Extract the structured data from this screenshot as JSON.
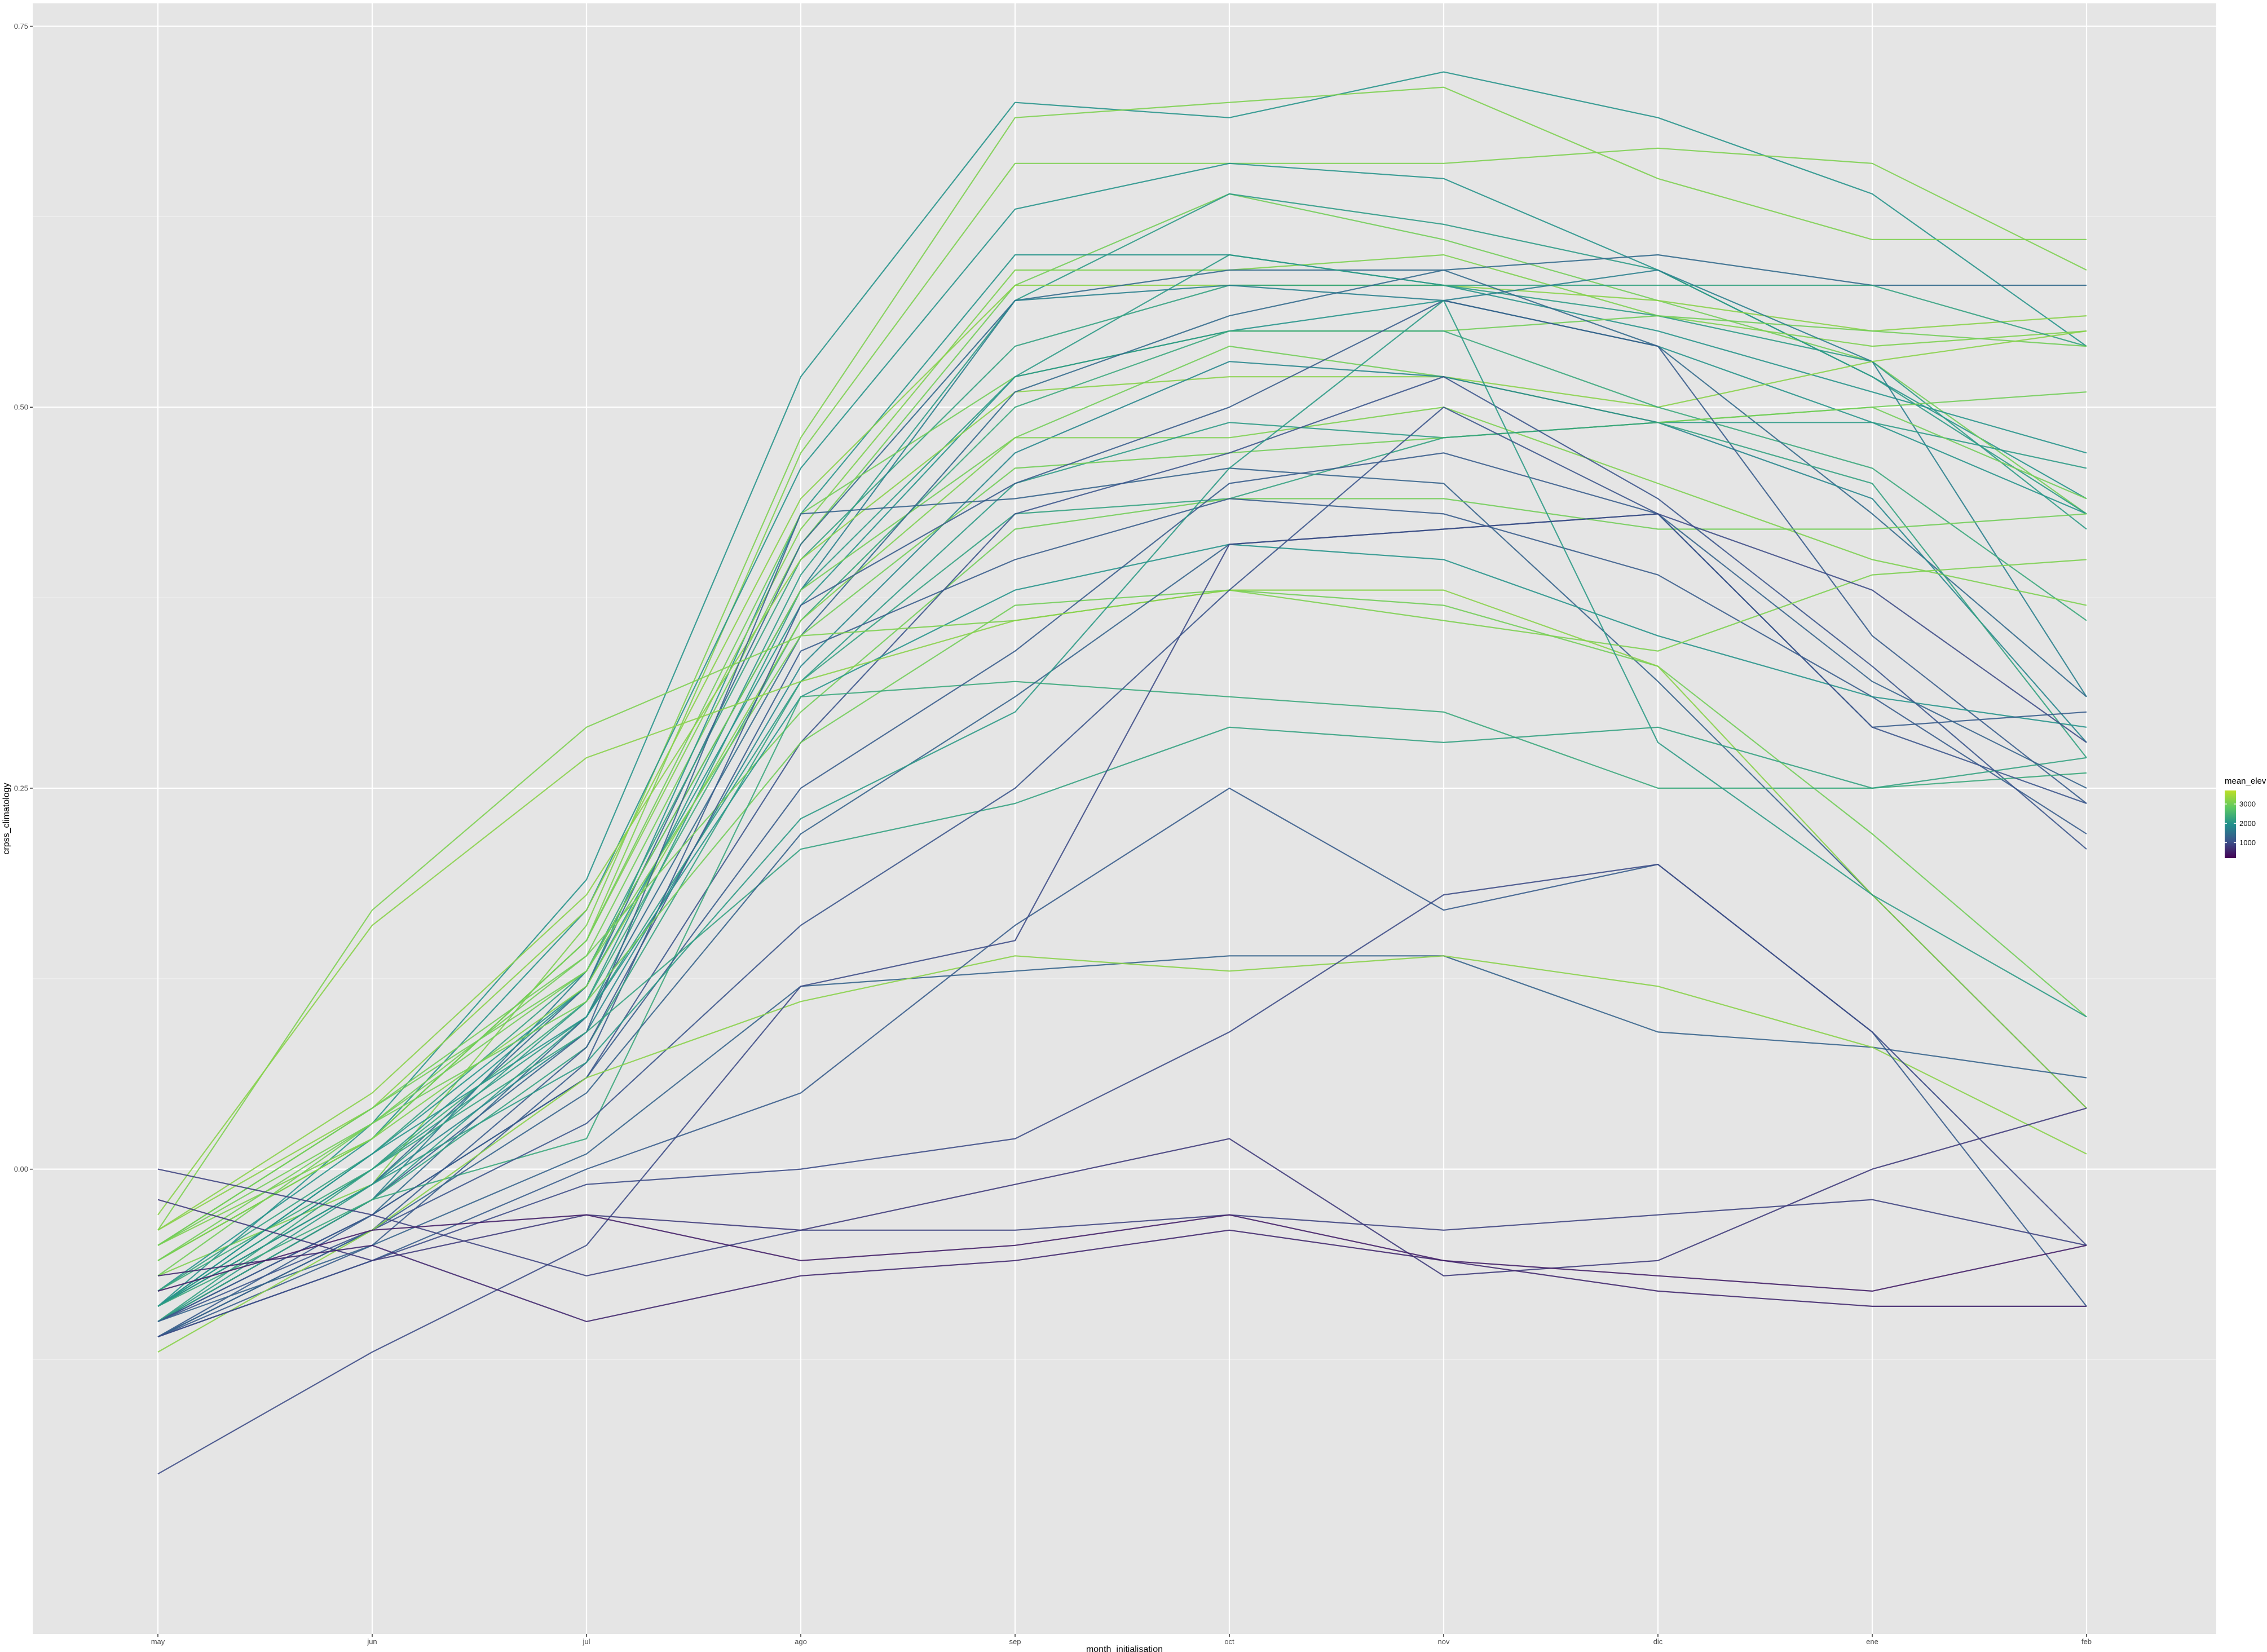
{
  "chart_data": {
    "type": "line",
    "title": "",
    "xlabel": "month_initialisation",
    "ylabel": "crpss_climatology",
    "categories": [
      "may",
      "jun",
      "jul",
      "ago",
      "sep",
      "oct",
      "nov",
      "dic",
      "ene",
      "feb"
    ],
    "ylim": [
      -0.305,
      0.765
    ],
    "yticks": [
      0.0,
      0.25,
      0.5,
      0.75
    ],
    "ytick_labels": [
      "0.00",
      "0.25",
      "0.50",
      "0.75"
    ],
    "grid": true,
    "legend": {
      "title": "mean_elev",
      "placement": "right",
      "ticks": [
        1000,
        2000,
        3000
      ],
      "tick_labels": [
        "1000",
        "2000",
        "3000"
      ],
      "range": [
        200,
        3700
      ]
    },
    "colors": {
      "panel": "#e5e5e5",
      "grid_major": "#ffffff",
      "grid_minor": "#f0f0f0",
      "scale": [
        "#440154",
        "#3b528b",
        "#21908c",
        "#5ec962",
        "#bddf26"
      ]
    },
    "series": [
      {
        "elev": 2000,
        "values": [
          -0.09,
          0.03,
          0.19,
          0.52,
          0.7,
          0.69,
          0.72,
          0.69,
          0.64,
          0.54
        ]
      },
      {
        "elev": 3100,
        "values": [
          -0.07,
          -0.01,
          0.16,
          0.48,
          0.69,
          0.7,
          0.71,
          0.65,
          0.61,
          0.61
        ]
      },
      {
        "elev": 3100,
        "values": [
          -0.06,
          0.02,
          0.15,
          0.47,
          0.66,
          0.66,
          0.66,
          0.67,
          0.66,
          0.59
        ]
      },
      {
        "elev": 2000,
        "values": [
          -0.08,
          0.02,
          0.17,
          0.46,
          0.63,
          0.66,
          0.65,
          0.59,
          0.52,
          0.44
        ]
      },
      {
        "elev": 3000,
        "values": [
          -0.05,
          0.03,
          0.14,
          0.41,
          0.58,
          0.64,
          0.61,
          0.57,
          0.53,
          0.43
        ]
      },
      {
        "elev": 2000,
        "values": [
          -0.09,
          0.0,
          0.12,
          0.43,
          0.6,
          0.6,
          0.58,
          0.55,
          0.51,
          0.47
        ]
      },
      {
        "elev": 2100,
        "values": [
          -0.1,
          -0.01,
          0.11,
          0.39,
          0.57,
          0.64,
          0.62,
          0.59,
          0.52,
          0.43
        ]
      },
      {
        "elev": 3100,
        "values": [
          -0.05,
          0.02,
          0.15,
          0.42,
          0.59,
          0.59,
          0.6,
          0.56,
          0.54,
          0.55
        ]
      },
      {
        "elev": 3200,
        "values": [
          -0.04,
          0.04,
          0.17,
          0.44,
          0.58,
          0.58,
          0.58,
          0.57,
          0.55,
          0.56
        ]
      },
      {
        "elev": 1400,
        "values": [
          -0.09,
          -0.01,
          0.12,
          0.41,
          0.57,
          0.59,
          0.59,
          0.6,
          0.58,
          0.58
        ]
      },
      {
        "elev": 2100,
        "values": [
          -0.1,
          -0.02,
          0.1,
          0.38,
          0.52,
          0.6,
          0.58,
          0.56,
          0.53,
          0.42
        ]
      },
      {
        "elev": 2200,
        "values": [
          -0.08,
          0.01,
          0.13,
          0.4,
          0.54,
          0.58,
          0.58,
          0.58,
          0.58,
          0.54
        ]
      },
      {
        "elev": 3000,
        "values": [
          -0.06,
          0.02,
          0.15,
          0.43,
          0.52,
          0.55,
          0.55,
          0.56,
          0.55,
          0.54
        ]
      },
      {
        "elev": 1700,
        "values": [
          -0.1,
          -0.02,
          0.13,
          0.38,
          0.57,
          0.58,
          0.57,
          0.59,
          0.53,
          0.31
        ]
      },
      {
        "elev": 2000,
        "values": [
          -0.09,
          0.01,
          0.12,
          0.37,
          0.52,
          0.55,
          0.57,
          0.54,
          0.49,
          0.43
        ]
      },
      {
        "elev": 3200,
        "values": [
          -0.04,
          0.05,
          0.18,
          0.4,
          0.51,
          0.52,
          0.52,
          0.5,
          0.53,
          0.55
        ]
      },
      {
        "elev": 2300,
        "values": [
          -0.08,
          0.0,
          0.11,
          0.36,
          0.5,
          0.55,
          0.55,
          0.5,
          0.46,
          0.36
        ]
      },
      {
        "elev": 3000,
        "values": [
          -0.07,
          0.03,
          0.13,
          0.38,
          0.48,
          0.54,
          0.52,
          0.49,
          0.5,
          0.51
        ]
      },
      {
        "elev": 1400,
        "values": [
          -0.1,
          -0.03,
          0.1,
          0.35,
          0.51,
          0.56,
          0.59,
          0.54,
          0.43,
          0.31
        ]
      },
      {
        "elev": 1800,
        "values": [
          -0.09,
          -0.01,
          0.09,
          0.33,
          0.47,
          0.53,
          0.52,
          0.49,
          0.44,
          0.28
        ]
      },
      {
        "elev": 3100,
        "values": [
          -0.06,
          0.02,
          0.12,
          0.36,
          0.48,
          0.48,
          0.5,
          0.45,
          0.4,
          0.37
        ]
      },
      {
        "elev": 2100,
        "values": [
          -0.09,
          0.0,
          0.1,
          0.32,
          0.45,
          0.49,
          0.48,
          0.49,
          0.49,
          0.46
        ]
      },
      {
        "elev": 3000,
        "values": [
          -0.05,
          0.04,
          0.13,
          0.35,
          0.46,
          0.47,
          0.48,
          0.49,
          0.5,
          0.44
        ]
      },
      {
        "elev": 1300,
        "values": [
          -0.1,
          -0.02,
          0.09,
          0.43,
          0.44,
          0.46,
          0.45,
          0.32,
          0.18,
          0.04
        ]
      },
      {
        "elev": 1200,
        "values": [
          -0.11,
          -0.05,
          0.07,
          0.37,
          0.45,
          0.5,
          0.57,
          0.54,
          0.35,
          0.24
        ]
      },
      {
        "elev": 2200,
        "values": [
          -0.1,
          -0.02,
          0.08,
          0.32,
          0.43,
          0.44,
          0.48,
          0.49,
          0.45,
          0.27
        ]
      },
      {
        "elev": 3000,
        "values": [
          -0.05,
          0.04,
          0.14,
          0.3,
          0.42,
          0.44,
          0.44,
          0.42,
          0.42,
          0.43
        ]
      },
      {
        "elev": 1200,
        "values": [
          -0.11,
          -0.04,
          0.08,
          0.34,
          0.4,
          0.44,
          0.43,
          0.39,
          0.31,
          0.22
        ]
      },
      {
        "elev": 1100,
        "values": [
          -0.1,
          -0.03,
          0.06,
          0.28,
          0.43,
          0.47,
          0.52,
          0.44,
          0.33,
          0.21
        ]
      },
      {
        "elev": 2000,
        "values": [
          -0.09,
          0.01,
          0.1,
          0.31,
          0.38,
          0.41,
          0.4,
          0.35,
          0.31,
          0.29
        ]
      },
      {
        "elev": 3000,
        "values": [
          -0.06,
          0.03,
          0.11,
          0.28,
          0.37,
          0.38,
          0.37,
          0.33,
          0.22,
          0.1
        ]
      },
      {
        "elev": 2300,
        "values": [
          -0.09,
          -0.02,
          0.02,
          0.31,
          0.32,
          0.31,
          0.3,
          0.25,
          0.25,
          0.26
        ]
      },
      {
        "elev": 1200,
        "values": [
          -0.11,
          -0.03,
          0.06,
          0.25,
          0.34,
          0.45,
          0.47,
          0.43,
          0.29,
          0.3
        ]
      },
      {
        "elev": 3100,
        "values": [
          -0.04,
          0.17,
          0.29,
          0.35,
          0.36,
          0.38,
          0.36,
          0.34,
          0.39,
          0.4
        ]
      },
      {
        "elev": 3200,
        "values": [
          -0.03,
          0.16,
          0.27,
          0.32,
          0.36,
          0.38,
          0.38,
          0.33,
          0.18,
          0.04
        ]
      },
      {
        "elev": 2200,
        "values": [
          -0.1,
          0.0,
          0.09,
          0.21,
          0.24,
          0.29,
          0.28,
          0.29,
          0.25,
          0.27
        ]
      },
      {
        "elev": 1300,
        "values": [
          -0.11,
          -0.04,
          0.05,
          0.22,
          0.31,
          0.41,
          0.42,
          0.43,
          0.32,
          0.25
        ]
      },
      {
        "elev": 2100,
        "values": [
          -0.09,
          -0.01,
          0.07,
          0.23,
          0.3,
          0.46,
          0.57,
          0.28,
          0.18,
          0.1
        ]
      },
      {
        "elev": 1100,
        "values": [
          -0.1,
          -0.04,
          0.03,
          0.16,
          0.25,
          0.38,
          0.5,
          0.43,
          0.29,
          0.24
        ]
      },
      {
        "elev": 1300,
        "values": [
          -0.1,
          -0.05,
          0.01,
          0.12,
          0.13,
          0.14,
          0.14,
          0.09,
          0.08,
          0.06
        ]
      },
      {
        "elev": 3200,
        "values": [
          -0.12,
          -0.04,
          0.06,
          0.11,
          0.14,
          0.13,
          0.14,
          0.12,
          0.08,
          0.01
        ]
      },
      {
        "elev": 1200,
        "values": [
          -0.11,
          -0.06,
          0.0,
          0.05,
          0.16,
          0.25,
          0.17,
          0.2,
          0.09,
          -0.09
        ]
      },
      {
        "elev": 1000,
        "values": [
          -0.2,
          -0.12,
          -0.05,
          0.12,
          0.15,
          0.41,
          0.42,
          0.43,
          0.38,
          0.28
        ]
      },
      {
        "elev": 1000,
        "values": [
          -0.11,
          -0.06,
          -0.01,
          0.0,
          0.02,
          0.09,
          0.18,
          0.2,
          0.09,
          -0.05
        ]
      },
      {
        "elev": 900,
        "values": [
          0.0,
          -0.03,
          -0.07,
          -0.04,
          -0.04,
          -0.03,
          -0.04,
          -0.03,
          -0.02,
          -0.05
        ]
      },
      {
        "elev": 800,
        "values": [
          -0.02,
          -0.06,
          -0.03,
          -0.04,
          -0.01,
          0.02,
          -0.07,
          -0.06,
          0.0,
          0.04
        ]
      },
      {
        "elev": 600,
        "values": [
          -0.07,
          -0.05,
          -0.1,
          -0.07,
          -0.06,
          -0.04,
          -0.06,
          -0.08,
          -0.09,
          -0.09
        ]
      },
      {
        "elev": 500,
        "values": [
          -0.08,
          -0.04,
          -0.03,
          -0.06,
          -0.05,
          -0.03,
          -0.06,
          -0.07,
          -0.08,
          -0.05
        ]
      }
    ]
  }
}
